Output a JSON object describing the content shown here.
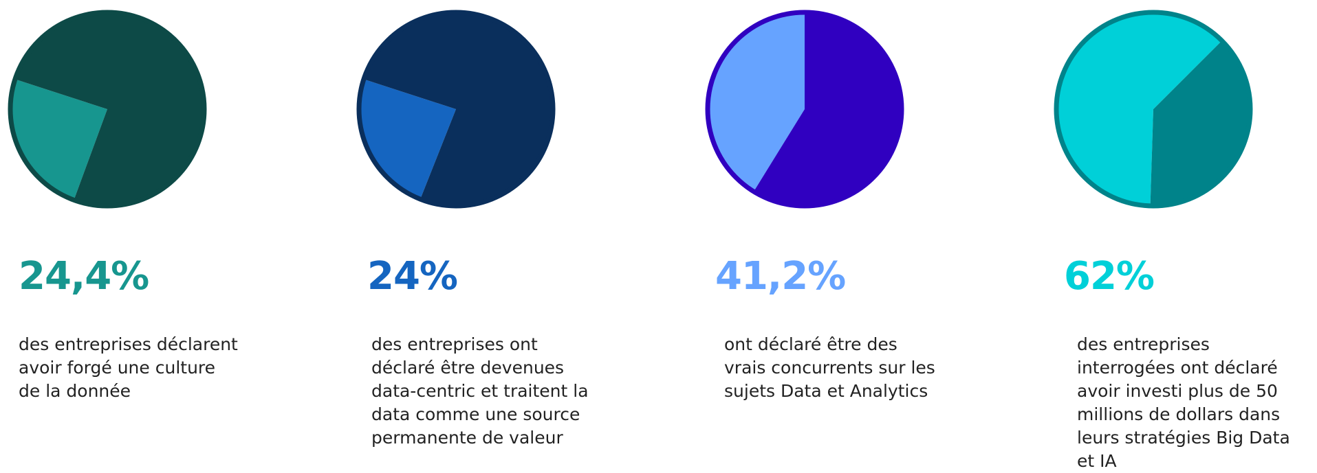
{
  "chart_data": [
    {
      "type": "pie",
      "values": [
        24.4,
        75.6
      ],
      "value_labels": [
        "24,4%",
        null
      ],
      "colors": [
        "#17968f",
        "#0d4a47"
      ],
      "border": "#0d4a47",
      "description": "des entreprises déclarent avoir forgé une culture de la donnée"
    },
    {
      "type": "pie",
      "values": [
        24,
        76
      ],
      "value_labels": [
        "24%",
        null
      ],
      "colors": [
        "#1565c0",
        "#0a2f5c"
      ],
      "border": "#0a2f5c",
      "description": "des entreprises ont déclaré être devenues data-centric et traitent la data comme une source permanente de valeur"
    },
    {
      "type": "pie",
      "values": [
        41.2,
        58.8
      ],
      "value_labels": [
        "41,2%",
        null
      ],
      "colors": [
        "#66a3ff",
        "#3000c0"
      ],
      "border": "#3000c0",
      "description": "ont déclaré être des vrais concurrents sur les sujets Data et Analytics"
    },
    {
      "type": "pie",
      "values": [
        62,
        38
      ],
      "value_labels": [
        "62%",
        null
      ],
      "colors": [
        "#00d0d8",
        "#00838a"
      ],
      "border": "#00838a",
      "description": "des entreprises interrogées ont déclaré avoir investi plus de 50 millions de dollars dans leurs stratégies Big Data et IA"
    }
  ]
}
